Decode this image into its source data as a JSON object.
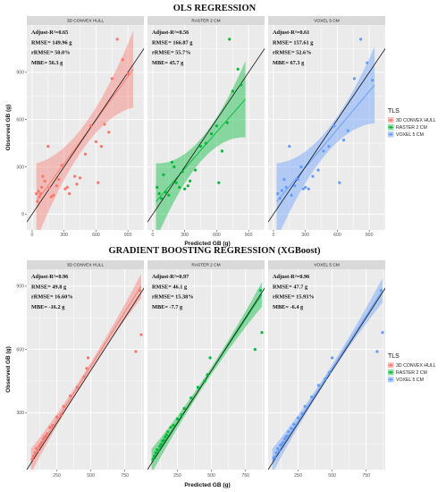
{
  "chart_data": [
    {
      "type": "scatter",
      "title": "OLS REGRESSION",
      "xlabel": "Predicted GB (g)",
      "ylabel": "Observed GB (g)",
      "xlim": [
        -50,
        1050
      ],
      "ylim": [
        -100,
        1200
      ],
      "xticks": [
        0,
        300,
        600,
        900
      ],
      "yticks": [
        0,
        300,
        600,
        900
      ],
      "legend": {
        "title": "TLS",
        "position": "right",
        "entries": [
          "3D CONVEX HULL",
          "RASTER 2 CM",
          "VOXEL 5 CM"
        ]
      },
      "panels": [
        {
          "name": "3D CONVEX HULL",
          "color": "#F8766D",
          "stats": [
            "Adjust-R²=0.65",
            "RMSE= 149.96 g",
            "rRMSE= 50.0%",
            "MBE= 56.3 g"
          ],
          "fit": {
            "x0": 40,
            "y0": 80,
            "x1": 950,
            "y1": 920
          },
          "points": [
            [
              40,
              130
            ],
            [
              50,
              80
            ],
            [
              60,
              145
            ],
            [
              70,
              110
            ],
            [
              80,
              130
            ],
            [
              90,
              170
            ],
            [
              100,
              240
            ],
            [
              120,
              210
            ],
            [
              150,
              430
            ],
            [
              160,
              165
            ],
            [
              180,
              110
            ],
            [
              200,
              120
            ],
            [
              230,
              180
            ],
            [
              250,
              220
            ],
            [
              280,
              310
            ],
            [
              310,
              160
            ],
            [
              330,
              170
            ],
            [
              350,
              130
            ],
            [
              400,
              240
            ],
            [
              420,
              190
            ],
            [
              450,
              230
            ],
            [
              500,
              380
            ],
            [
              550,
              560
            ],
            [
              600,
              460
            ],
            [
              620,
              200
            ],
            [
              650,
              430
            ],
            [
              680,
              570
            ],
            [
              720,
              520
            ],
            [
              750,
              860
            ],
            [
              800,
              1110
            ],
            [
              850,
              980
            ],
            [
              900,
              890
            ]
          ]
        },
        {
          "name": "RASTER 2 CM",
          "color": "#00BA38",
          "stats": [
            "Adjust-R²=0.56",
            "RMSE= 166.87 g",
            "rRMSE= 55.7%",
            "MBE= 45.7 g"
          ],
          "fit": {
            "x0": 30,
            "y0": 80,
            "x1": 870,
            "y1": 730
          },
          "points": [
            [
              40,
              170
            ],
            [
              60,
              130
            ],
            [
              80,
              100
            ],
            [
              100,
              250
            ],
            [
              120,
              140
            ],
            [
              150,
              120
            ],
            [
              180,
              330
            ],
            [
              200,
              300
            ],
            [
              220,
              200
            ],
            [
              250,
              170
            ],
            [
              280,
              270
            ],
            [
              300,
              160
            ],
            [
              330,
              180
            ],
            [
              350,
              210
            ],
            [
              400,
              280
            ],
            [
              450,
              430
            ],
            [
              500,
              450
            ],
            [
              550,
              510
            ],
            [
              600,
              560
            ],
            [
              620,
              200
            ],
            [
              650,
              400
            ],
            [
              700,
              580
            ],
            [
              720,
              1110
            ],
            [
              750,
              780
            ],
            [
              800,
              920
            ],
            [
              830,
              820
            ]
          ]
        },
        {
          "name": "VOXEL 5 CM",
          "color": "#619CFF",
          "stats": [
            "Adjust-R²=0.61",
            "RMSE= 157.61 g",
            "rRMSE= 52.6%",
            "MBE= 67.3 g"
          ],
          "fit": {
            "x0": 30,
            "y0": 80,
            "x1": 950,
            "y1": 820
          },
          "points": [
            [
              40,
              130
            ],
            [
              60,
              100
            ],
            [
              80,
              150
            ],
            [
              100,
              220
            ],
            [
              120,
              170
            ],
            [
              150,
              430
            ],
            [
              170,
              120
            ],
            [
              200,
              180
            ],
            [
              230,
              220
            ],
            [
              260,
              300
            ],
            [
              280,
              160
            ],
            [
              300,
              170
            ],
            [
              330,
              160
            ],
            [
              370,
              240
            ],
            [
              420,
              280
            ],
            [
              470,
              400
            ],
            [
              520,
              430
            ],
            [
              570,
              560
            ],
            [
              620,
              200
            ],
            [
              660,
              470
            ],
            [
              700,
              530
            ],
            [
              760,
              860
            ],
            [
              820,
              1110
            ],
            [
              880,
              960
            ],
            [
              930,
              850
            ]
          ]
        }
      ]
    },
    {
      "type": "scatter",
      "title": "GRADIENT BOOSTING REGRESSION (XGBoost)",
      "xlabel": "Predicted GB (g)",
      "ylabel": "Observed GB (g)",
      "xlim": [
        30,
        890
      ],
      "ylim": [
        30,
        980
      ],
      "xticks": [
        250,
        500,
        750
      ],
      "yticks": [
        300,
        600,
        900
      ],
      "legend": {
        "title": "TLS",
        "position": "right",
        "entries": [
          "3D CONVEX HULL",
          "RASTER 2 CM",
          "VOXEL 5 CM"
        ]
      },
      "panels": [
        {
          "name": "3D CONVEX HULL",
          "color": "#F8766D",
          "stats": [
            "Adjust-R²=0.96",
            "RMSE= 49.8 g",
            "rRMSE= 16.60%",
            "MBE= -16.2 g"
          ],
          "fit": {
            "x0": 60,
            "y0": 70,
            "x1": 870,
            "y1": 900
          },
          "points": [
            [
              70,
              80
            ],
            [
              80,
              95
            ],
            [
              90,
              110
            ],
            [
              100,
              130
            ],
            [
              110,
              120
            ],
            [
              120,
              140
            ],
            [
              130,
              150
            ],
            [
              140,
              160
            ],
            [
              150,
              175
            ],
            [
              160,
              185
            ],
            [
              170,
              190
            ],
            [
              180,
              200
            ],
            [
              200,
              230
            ],
            [
              220,
              240
            ],
            [
              250,
              280
            ],
            [
              280,
              290
            ],
            [
              300,
              330
            ],
            [
              350,
              380
            ],
            [
              400,
              420
            ],
            [
              450,
              470
            ],
            [
              470,
              510
            ],
            [
              480,
              560
            ],
            [
              830,
              590
            ],
            [
              860,
              880
            ],
            [
              870,
              670
            ]
          ]
        },
        {
          "name": "RASTER 2 CM",
          "color": "#00BA38",
          "stats": [
            "Adjust-R²=0.97",
            "RMSE= 46.1 g",
            "rRMSE= 15.38%",
            "MBE= -7.7 g"
          ],
          "fit": {
            "x0": 60,
            "y0": 70,
            "x1": 870,
            "y1": 860
          },
          "points": [
            [
              70,
              80
            ],
            [
              80,
              95
            ],
            [
              90,
              110
            ],
            [
              100,
              125
            ],
            [
              110,
              120
            ],
            [
              120,
              140
            ],
            [
              130,
              150
            ],
            [
              140,
              165
            ],
            [
              150,
              170
            ],
            [
              160,
              185
            ],
            [
              170,
              195
            ],
            [
              180,
              210
            ],
            [
              200,
              230
            ],
            [
              220,
              240
            ],
            [
              250,
              270
            ],
            [
              280,
              290
            ],
            [
              300,
              320
            ],
            [
              350,
              370
            ],
            [
              400,
              420
            ],
            [
              450,
              450
            ],
            [
              470,
              480
            ],
            [
              490,
              560
            ],
            [
              820,
              600
            ],
            [
              860,
              880
            ],
            [
              870,
              680
            ]
          ]
        },
        {
          "name": "VOXEL 5 CM",
          "color": "#619CFF",
          "stats": [
            "Adjust-R²=0.96",
            "RMSE= 47.7 g",
            "rRMSE= 15.93%",
            "MBE= -6.4 g"
          ],
          "fit": {
            "x0": 60,
            "y0": 70,
            "x1": 870,
            "y1": 880
          },
          "points": [
            [
              70,
              85
            ],
            [
              80,
              90
            ],
            [
              90,
              110
            ],
            [
              100,
              130
            ],
            [
              110,
              120
            ],
            [
              120,
              145
            ],
            [
              130,
              150
            ],
            [
              140,
              160
            ],
            [
              150,
              175
            ],
            [
              160,
              185
            ],
            [
              170,
              190
            ],
            [
              180,
              210
            ],
            [
              200,
              225
            ],
            [
              220,
              245
            ],
            [
              250,
              275
            ],
            [
              280,
              295
            ],
            [
              300,
              330
            ],
            [
              350,
              375
            ],
            [
              400,
              430
            ],
            [
              450,
              460
            ],
            [
              480,
              490
            ],
            [
              500,
              560
            ],
            [
              830,
              590
            ],
            [
              860,
              880
            ],
            [
              870,
              680
            ]
          ]
        }
      ]
    }
  ]
}
